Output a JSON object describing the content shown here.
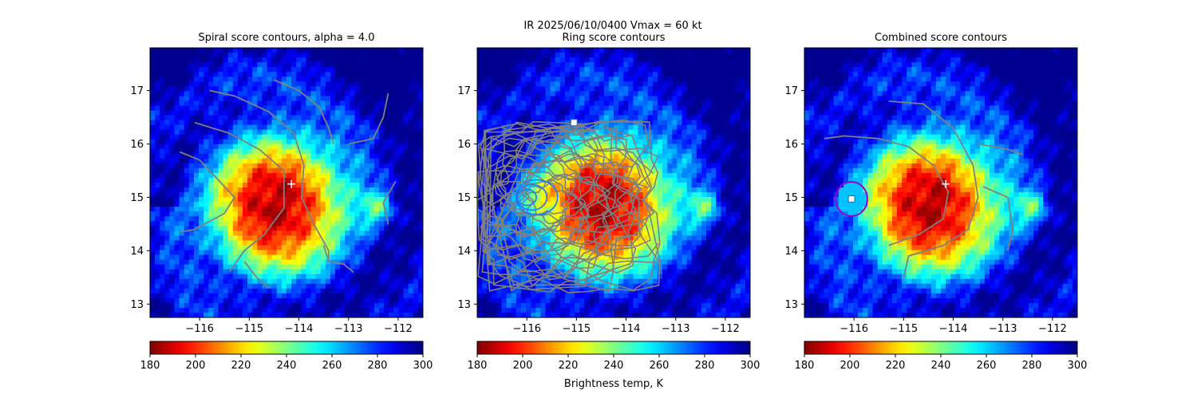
{
  "suptitle": "IR  2025/06/10/0400    Vmax = 60 kt",
  "colorbar_label": "Brightness temp, K",
  "colors": {
    "contour": "#808080",
    "center_marker": "#ffffff",
    "ring_marker": "#9900cc",
    "square_marker_edge": "#1f77b4"
  },
  "colorbar": {
    "colormap": "jet_reversed",
    "range": [
      180,
      300
    ],
    "ticks": [
      "180",
      "200",
      "220",
      "240",
      "260",
      "280",
      "300"
    ]
  },
  "chart_data": [
    {
      "type": "heatmap",
      "title": "Spiral score contours, alpha =  4.0",
      "xlim": [
        -117.0,
        -111.5
      ],
      "ylim": [
        12.75,
        17.8
      ],
      "xticks": [
        "−116",
        "−115",
        "−114",
        "−113",
        "−112"
      ],
      "xtick_values": [
        -116,
        -115,
        -114,
        -113,
        -112
      ],
      "yticks": [
        "13",
        "14",
        "15",
        "16",
        "17"
      ],
      "ytick_values": [
        13,
        14,
        15,
        16,
        17
      ],
      "center_marker": {
        "lon": -114.15,
        "lat": 15.25
      },
      "overlay": "spiral"
    },
    {
      "type": "heatmap",
      "title": "Ring score contours",
      "xlim": [
        -117.0,
        -111.5
      ],
      "ylim": [
        12.75,
        17.8
      ],
      "xticks": [
        "−116",
        "−115",
        "−114",
        "−113",
        "−112"
      ],
      "xtick_values": [
        -116,
        -115,
        -114,
        -113,
        -112
      ],
      "yticks": [
        "13",
        "14",
        "15",
        "16",
        "17"
      ],
      "ytick_values": [
        13,
        14,
        15,
        16,
        17
      ],
      "square_marker": {
        "lon": -115.05,
        "lat": 16.4
      },
      "overlay": "ring"
    },
    {
      "type": "heatmap",
      "title": "Combined score contours",
      "xlim": [
        -117.0,
        -111.5
      ],
      "ylim": [
        12.75,
        17.8
      ],
      "xticks": [
        "−116",
        "−115",
        "−114",
        "−113",
        "−112"
      ],
      "xtick_values": [
        -116,
        -115,
        -114,
        -113,
        -112
      ],
      "yticks": [
        "13",
        "14",
        "15",
        "16",
        "17"
      ],
      "ytick_values": [
        13,
        14,
        15,
        16,
        17
      ],
      "center_marker": {
        "lon": -114.15,
        "lat": 15.25
      },
      "square_marker": {
        "lon": -116.05,
        "lat": 14.97
      },
      "ring_marker": {
        "lon": -116.05,
        "lat": 14.97,
        "radius_deg": 0.32
      },
      "overlay": "combined"
    }
  ]
}
